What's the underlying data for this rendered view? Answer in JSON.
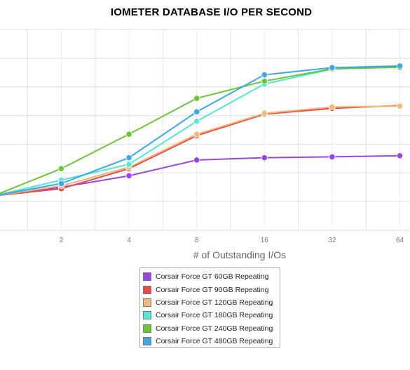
{
  "chart_data": {
    "type": "line",
    "title": "IOMETER DATABASE I/O PER SECOND",
    "xlabel": "# of Outstanding I/Os",
    "ylabel": "",
    "x": [
      1,
      2,
      4,
      8,
      16,
      32,
      64
    ],
    "x_tick_labels": [
      "2",
      "4",
      "8",
      "16",
      "32",
      "64"
    ],
    "x_scale": "log2",
    "xlim": [
      0.74,
      66
    ],
    "y_gridlines": 8,
    "y_tick_labels_visible": false,
    "grid": true,
    "legend_position": "bottom-center",
    "series": [
      {
        "name": "Corsair Force GT 60GB Repeating",
        "color": "#9944e6",
        "values": [
          12,
          15,
          19,
          24.5,
          25.3,
          25.6,
          26
        ]
      },
      {
        "name": "Corsair Force GT 90GB Repeating",
        "color": "#e84b43",
        "values": [
          12,
          14.5,
          21.5,
          33,
          40.5,
          42.5,
          43.5
        ]
      },
      {
        "name": "Corsair Force GT 120GB Repeating",
        "color": "#efb97a",
        "values": [
          12,
          15.5,
          22,
          33.5,
          40.8,
          43,
          43.3
        ]
      },
      {
        "name": "Corsair Force GT 180GB Repeating",
        "color": "#55e6d4",
        "values": [
          12,
          17.5,
          23,
          38,
          51,
          56.2,
          57.2
        ]
      },
      {
        "name": "Corsair Force GT 240GB Repeating",
        "color": "#6cc534",
        "values": [
          12,
          21.5,
          33.5,
          46,
          52,
          56.3,
          56.8
        ]
      },
      {
        "name": "Corsair Force GT 480GB Repeating",
        "color": "#39a9ec",
        "values": [
          12,
          16.3,
          25.3,
          41.3,
          54.2,
          56.7,
          57.3
        ]
      }
    ]
  }
}
